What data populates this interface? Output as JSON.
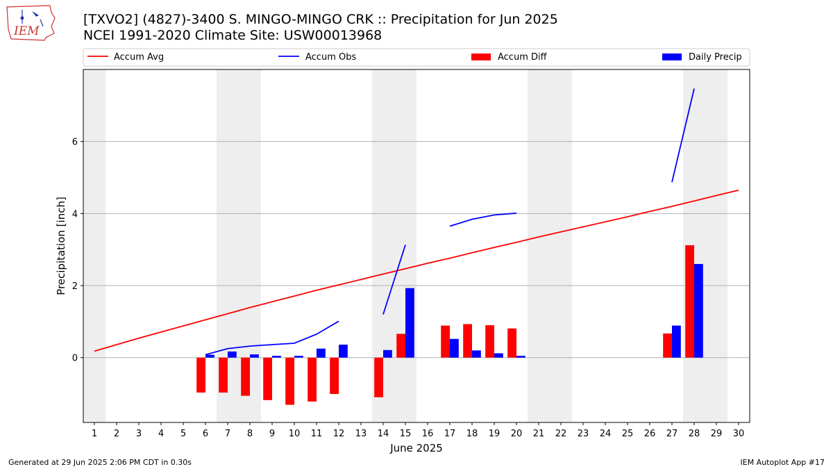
{
  "header": {
    "title_line1": "[TXVO2] (4827)-3400 S. MINGO-MINGO CRK :: Precipitation for Jun 2025",
    "title_line2": "NCEI 1991-2020 Climate Site: USW00013968",
    "logo_text": "IEM"
  },
  "footer": {
    "left": "Generated at 29 Jun 2025 2:06 PM CDT in 0.30s",
    "right": "IEM Autoplot App #17"
  },
  "colors": {
    "accum_avg": "#ff0000",
    "accum_obs": "#0000ff",
    "accum_diff": "#ff0000",
    "daily_precip": "#0000ff",
    "weekend_shade": "#eeeeee",
    "grid": "#b0b0b0"
  },
  "chart_data": {
    "type": "bar",
    "xlabel": "June 2025",
    "ylabel": "Precipitation [inch]",
    "xlim": [
      0.5,
      30.5
    ],
    "ylim": [
      -1.8,
      8.0
    ],
    "yticks": [
      0,
      2,
      4,
      6
    ],
    "grid": "horizontal",
    "legend_position": "top",
    "weekend_days": [
      1,
      7,
      8,
      14,
      15,
      21,
      22,
      28,
      29
    ],
    "days": [
      1,
      2,
      3,
      4,
      5,
      6,
      7,
      8,
      9,
      10,
      11,
      12,
      13,
      14,
      15,
      16,
      17,
      18,
      19,
      20,
      21,
      22,
      23,
      24,
      25,
      26,
      27,
      28,
      29,
      30
    ],
    "series": [
      {
        "name": "Accum Avg",
        "type": "line",
        "values": [
          0.18,
          0.36,
          0.54,
          0.71,
          0.88,
          1.05,
          1.22,
          1.39,
          1.55,
          1.71,
          1.87,
          2.02,
          2.17,
          2.32,
          2.47,
          2.62,
          2.76,
          2.91,
          3.06,
          3.2,
          3.35,
          3.49,
          3.63,
          3.77,
          3.91,
          4.06,
          4.2,
          4.35,
          4.5,
          4.65
        ]
      },
      {
        "name": "Accum Obs",
        "type": "line",
        "values": [
          null,
          null,
          null,
          null,
          null,
          0.08,
          0.25,
          0.32,
          0.36,
          0.4,
          0.65,
          1.01,
          null,
          1.2,
          3.13,
          null,
          3.65,
          3.84,
          3.96,
          4.01,
          null,
          null,
          null,
          null,
          null,
          null,
          4.87,
          7.47,
          null,
          null
        ]
      },
      {
        "name": "Accum Diff",
        "type": "bar",
        "values": [
          null,
          null,
          null,
          null,
          null,
          -0.97,
          -0.97,
          -1.06,
          -1.18,
          -1.31,
          -1.22,
          -1.01,
          null,
          -1.1,
          0.66,
          null,
          0.89,
          0.93,
          0.9,
          0.81,
          null,
          null,
          null,
          null,
          null,
          null,
          0.67,
          3.12,
          null,
          null
        ]
      },
      {
        "name": "Daily Precip",
        "type": "bar",
        "values": [
          null,
          null,
          null,
          null,
          null,
          0.08,
          0.17,
          0.09,
          0.05,
          0.05,
          0.25,
          0.36,
          null,
          0.21,
          1.93,
          null,
          0.52,
          0.2,
          0.12,
          0.05,
          null,
          null,
          null,
          null,
          null,
          null,
          0.89,
          2.6,
          null,
          null
        ]
      }
    ]
  }
}
